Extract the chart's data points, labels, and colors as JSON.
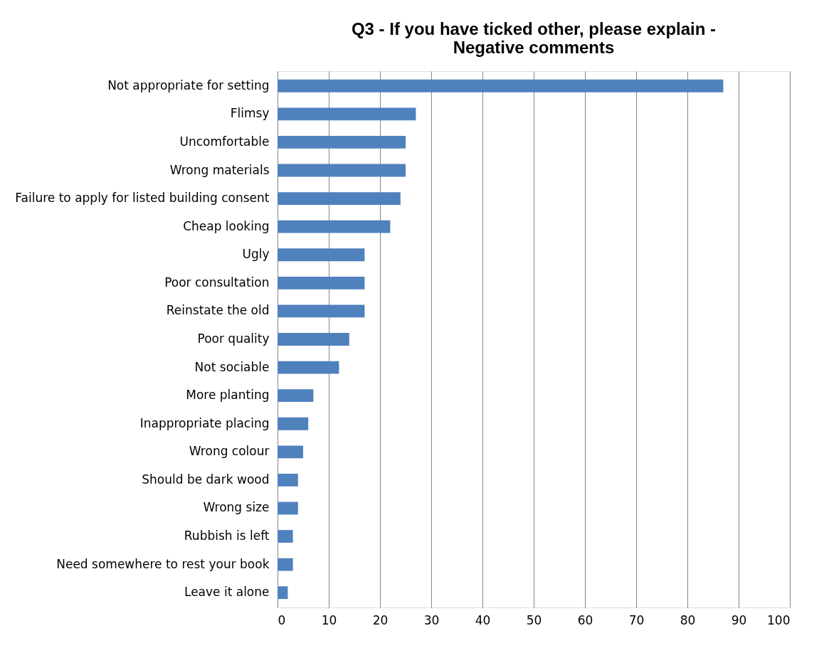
{
  "chart_data": {
    "type": "bar",
    "orientation": "horizontal",
    "title": "Q3 - If you have ticked other, please explain - Negative comments",
    "categories": [
      "Not appropriate for setting",
      "Flimsy",
      "Uncomfortable",
      "Wrong materials",
      "Failure to apply for listed building consent",
      "Cheap looking",
      "Ugly",
      "Poor consultation",
      "Reinstate the old",
      "Poor quality",
      "Not sociable ",
      "More planting ",
      "Inappropriate placing",
      "Wrong colour",
      "Should be dark wood",
      "Wrong size",
      "Rubbish is left",
      "Need somewhere to rest your book",
      "Leave it alone"
    ],
    "values": [
      87,
      27,
      25,
      25,
      24,
      22,
      17,
      17,
      17,
      14,
      12,
      7,
      6,
      5,
      4,
      4,
      3,
      3,
      2
    ],
    "color": "#4f81bd",
    "xlim": [
      0,
      100
    ],
    "xticks": [
      0,
      10,
      20,
      30,
      40,
      50,
      60,
      70,
      80,
      90,
      100
    ],
    "grid": "x"
  }
}
